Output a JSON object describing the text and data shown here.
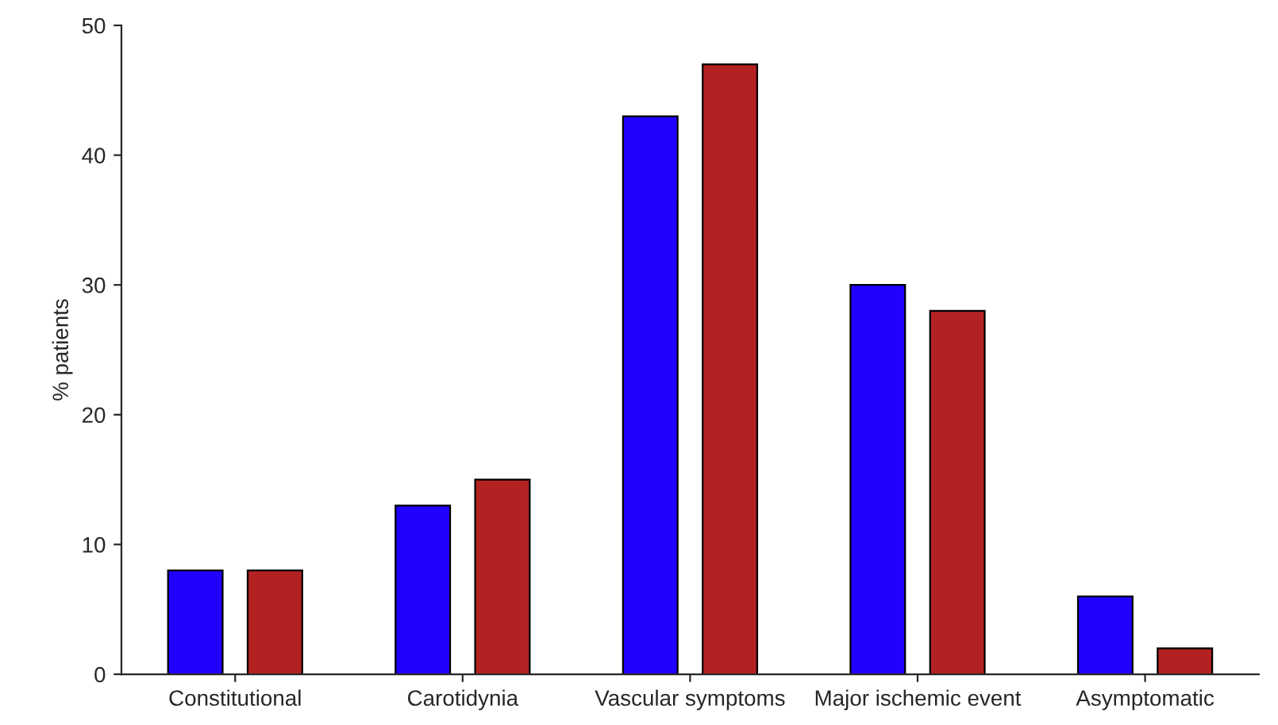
{
  "chart_data": {
    "type": "bar",
    "ylabel": "% patients",
    "categories": [
      "Constitutional",
      "Carotidynia",
      "Vascular symptoms",
      "Major ischemic event",
      "Asymptomatic"
    ],
    "series": [
      {
        "color": "#2200ff",
        "values": [
          8,
          13,
          43,
          30,
          6
        ]
      },
      {
        "color": "#b22222",
        "values": [
          8,
          15,
          47,
          28,
          2
        ]
      }
    ],
    "ylim": [
      0,
      50
    ],
    "yticks": [
      0,
      10,
      20,
      30,
      40,
      50
    ],
    "grid": false,
    "legend": false
  }
}
